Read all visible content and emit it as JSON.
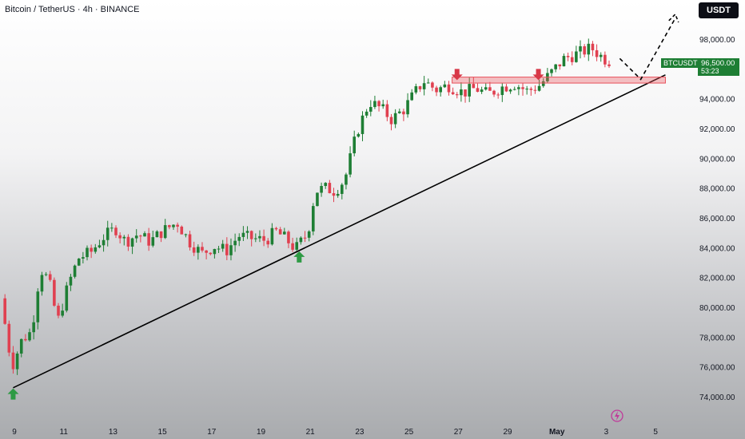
{
  "header": {
    "title": "Bitcoin / TetherUS · 4h · BINANCE",
    "currency_button": "USDT"
  },
  "price_tag": {
    "symbol": "BTCUSDT",
    "price": "96,500.00",
    "countdown": "53:23",
    "color": "#1e7e34"
  },
  "colors": {
    "up": "#1e7e34",
    "down": "#e04050",
    "zone": "#e8505a"
  },
  "chart_data": {
    "type": "candlestick",
    "y_ticks": [
      "98,000.00",
      "96,000.00",
      "94,000.00",
      "92,000.00",
      "90,000.00",
      "88,000.00",
      "86,000.00",
      "84,000.00",
      "82,000.00",
      "80,000.00",
      "78,000.00",
      "76,000.00",
      "74,000.00"
    ],
    "x_ticks": [
      {
        "label": "9",
        "day": 9
      },
      {
        "label": "11",
        "day": 11
      },
      {
        "label": "13",
        "day": 13
      },
      {
        "label": "15",
        "day": 15
      },
      {
        "label": "17",
        "day": 17
      },
      {
        "label": "19",
        "day": 19
      },
      {
        "label": "21",
        "day": 21
      },
      {
        "label": "23",
        "day": 23
      },
      {
        "label": "25",
        "day": 25
      },
      {
        "label": "27",
        "day": 27
      },
      {
        "label": "29",
        "day": 29
      },
      {
        "label": "May",
        "day": 31,
        "bold": true
      },
      {
        "label": "3",
        "day": 33
      },
      {
        "label": "5",
        "day": 35
      }
    ],
    "ylim": [
      72800,
      99800
    ],
    "xlim": [
      8.45,
      37
    ],
    "close_path": [
      [
        8.45,
        80600
      ],
      [
        8.9,
        76000
      ],
      [
        9.3,
        77800
      ],
      [
        9.7,
        78400
      ],
      [
        10.05,
        82600
      ],
      [
        10.4,
        81800
      ],
      [
        10.75,
        79000
      ],
      [
        11.2,
        81600
      ],
      [
        11.6,
        83300
      ],
      [
        12.1,
        83700
      ],
      [
        12.6,
        84700
      ],
      [
        13.1,
        85300
      ],
      [
        13.5,
        84400
      ],
      [
        14,
        84900
      ],
      [
        14.5,
        84400
      ],
      [
        15,
        85100
      ],
      [
        15.6,
        85700
      ],
      [
        16.1,
        84400
      ],
      [
        16.6,
        83600
      ],
      [
        17.1,
        84100
      ],
      [
        17.6,
        83800
      ],
      [
        18.1,
        84800
      ],
      [
        18.7,
        84600
      ],
      [
        19.2,
        84500
      ],
      [
        19.6,
        85100
      ],
      [
        20.0,
        84600
      ],
      [
        20.4,
        83900
      ],
      [
        20.9,
        85000
      ],
      [
        21.2,
        87800
      ],
      [
        21.6,
        88000
      ],
      [
        22,
        87800
      ],
      [
        22.4,
        88600
      ],
      [
        22.9,
        91800
      ],
      [
        23.4,
        93800
      ],
      [
        23.9,
        93300
      ],
      [
        24.3,
        92600
      ],
      [
        24.8,
        93300
      ],
      [
        25.2,
        94300
      ],
      [
        25.6,
        95200
      ],
      [
        26.1,
        94600
      ],
      [
        26.6,
        94900
      ],
      [
        27.2,
        94400
      ],
      [
        27.7,
        94700
      ],
      [
        28.2,
        94300
      ],
      [
        28.8,
        94800
      ],
      [
        29.3,
        95000
      ],
      [
        29.8,
        94500
      ],
      [
        30.3,
        94900
      ],
      [
        30.8,
        95800
      ],
      [
        31.3,
        96700
      ],
      [
        31.8,
        97000
      ],
      [
        32.4,
        97400
      ],
      [
        32.9,
        96700
      ],
      [
        33.2,
        96500
      ]
    ],
    "support_line": {
      "from": {
        "day": 8.95,
        "price": 74600
      },
      "to": {
        "day": 35.4,
        "price": 95600
      }
    },
    "resistance_zone": {
      "day_start": 26.75,
      "day_end": 35.4,
      "price_low": 95050,
      "price_high": 95450
    },
    "projection": [
      {
        "day": 33.55,
        "price": 96700
      },
      {
        "day": 34.4,
        "price": 95300
      },
      {
        "day": 35.8,
        "price": 99400
      }
    ],
    "signals": [
      {
        "type": "up",
        "day": 8.95,
        "price": 74500
      },
      {
        "type": "up",
        "day": 20.55,
        "price": 83700
      },
      {
        "type": "down",
        "day": 26.95,
        "price": 96000
      },
      {
        "type": "down",
        "day": 30.25,
        "price": 96000
      }
    ]
  }
}
